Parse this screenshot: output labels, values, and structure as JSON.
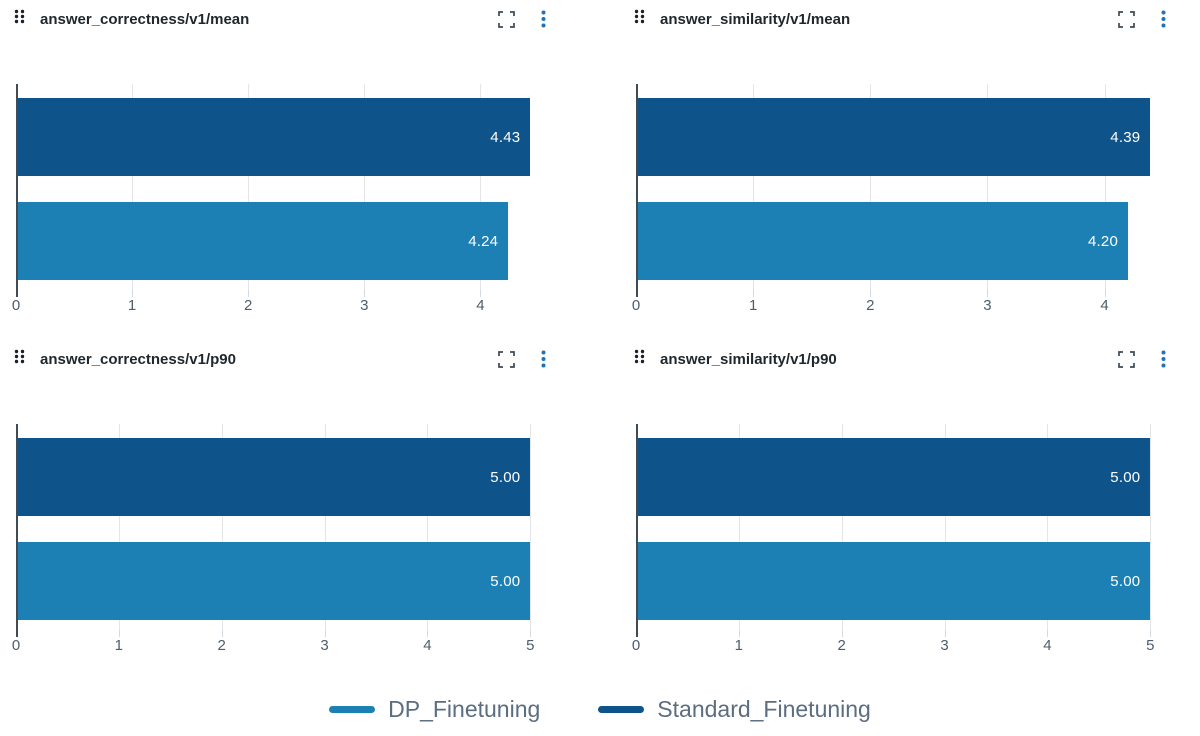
{
  "colors": {
    "dp_blue": "#1C80B4",
    "standard_blue": "#0E538A",
    "gridline": "#e3e6e9",
    "zeroline": "#3f4b55",
    "tick_text": "#4d5d6c",
    "title_text": "#1f272d",
    "legend_text": "#5b6d80",
    "menu_icon": "#2272B4",
    "expand_icon": "#3d4a55",
    "drag_icon": "#1b2126",
    "bar_value_text": "#ffffff"
  },
  "legend": {
    "items": [
      {
        "label": "DP_Finetuning",
        "color": "#1C80B4"
      },
      {
        "label": "Standard_Finetuning",
        "color": "#0E538A"
      }
    ]
  },
  "chart_data": [
    {
      "type": "bar",
      "orientation": "horizontal",
      "title": "answer_correctness/v1/mean",
      "xlabel": "",
      "ylabel": "",
      "xlim": [
        0,
        4.6515
      ],
      "xticks": [
        0,
        1,
        2,
        3,
        4
      ],
      "grid": true,
      "legend_position": "bottom-shared",
      "series": [
        {
          "name": "Standard_Finetuning",
          "value": 4.43,
          "label": "4.43",
          "color": "#0E538A"
        },
        {
          "name": "DP_Finetuning",
          "value": 4.24,
          "label": "4.24",
          "color": "#1C80B4"
        }
      ]
    },
    {
      "type": "bar",
      "orientation": "horizontal",
      "title": "answer_similarity/v1/mean",
      "xlabel": "",
      "ylabel": "",
      "xlim": [
        0,
        4.6095
      ],
      "xticks": [
        0,
        1,
        2,
        3,
        4
      ],
      "grid": true,
      "legend_position": "bottom-shared",
      "series": [
        {
          "name": "Standard_Finetuning",
          "value": 4.39,
          "label": "4.39",
          "color": "#0E538A"
        },
        {
          "name": "DP_Finetuning",
          "value": 4.2,
          "label": "4.20",
          "color": "#1C80B4"
        }
      ]
    },
    {
      "type": "bar",
      "orientation": "horizontal",
      "title": "answer_correctness/v1/p90",
      "xlabel": "",
      "ylabel": "",
      "xlim": [
        0,
        5.25
      ],
      "xticks": [
        0,
        1,
        2,
        3,
        4,
        5
      ],
      "grid": true,
      "legend_position": "bottom-shared",
      "series": [
        {
          "name": "Standard_Finetuning",
          "value": 5.0,
          "label": "5.00",
          "color": "#0E538A"
        },
        {
          "name": "DP_Finetuning",
          "value": 5.0,
          "label": "5.00",
          "color": "#1C80B4"
        }
      ]
    },
    {
      "type": "bar",
      "orientation": "horizontal",
      "title": "answer_similarity/v1/p90",
      "xlabel": "",
      "ylabel": "",
      "xlim": [
        0,
        5.25
      ],
      "xticks": [
        0,
        1,
        2,
        3,
        4,
        5
      ],
      "grid": true,
      "legend_position": "bottom-shared",
      "series": [
        {
          "name": "Standard_Finetuning",
          "value": 5.0,
          "label": "5.00",
          "color": "#0E538A"
        },
        {
          "name": "DP_Finetuning",
          "value": 5.0,
          "label": "5.00",
          "color": "#1C80B4"
        }
      ]
    }
  ]
}
